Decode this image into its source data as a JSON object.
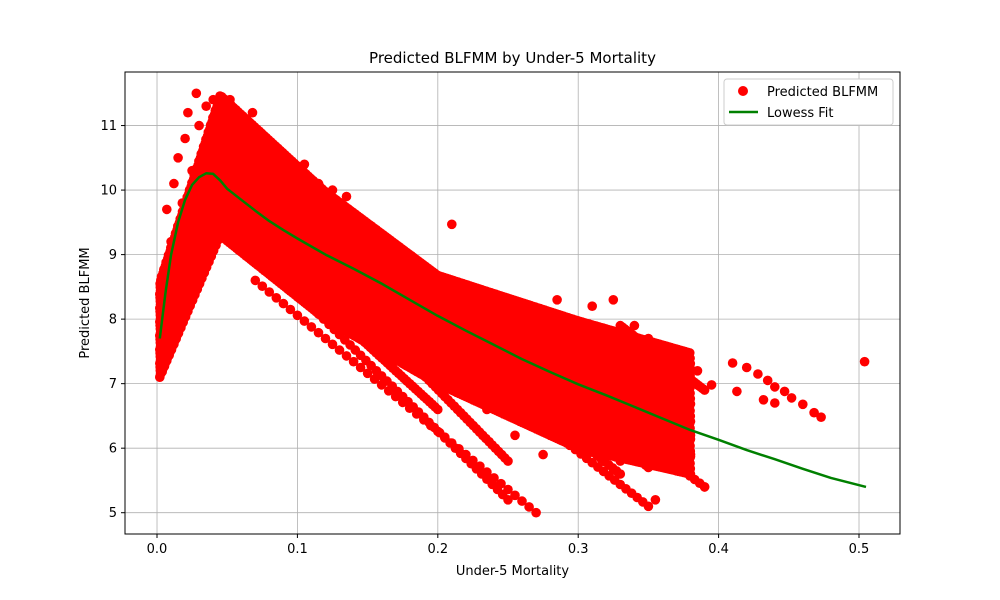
{
  "chart_data": {
    "type": "scatter",
    "title": "Predicted BLFMM by Under-5 Mortality",
    "xlabel": "Under-5 Mortality",
    "ylabel": "Predicted BLFMM",
    "xlim": [
      -0.0228,
      0.5292
    ],
    "ylim": [
      4.67,
      11.83
    ],
    "xticks": [
      0.0,
      0.1,
      0.2,
      0.3,
      0.4,
      0.5
    ],
    "xtick_labels": [
      "0.0",
      "0.1",
      "0.2",
      "0.3",
      "0.4",
      "0.5"
    ],
    "yticks": [
      5,
      6,
      7,
      8,
      9,
      10,
      11
    ],
    "ytick_labels": [
      "5",
      "6",
      "7",
      "8",
      "9",
      "10",
      "11"
    ],
    "grid": true,
    "legend_position": "top-right",
    "series": [
      {
        "name": "Predicted BLFMM",
        "kind": "scatter",
        "color": "#ff0000",
        "points": [
          [
            0.003,
            7.2
          ],
          [
            0.004,
            7.6
          ],
          [
            0.003,
            8.1
          ],
          [
            0.005,
            8.5
          ],
          [
            0.006,
            7.9
          ],
          [
            0.008,
            8.8
          ],
          [
            0.007,
            9.7
          ],
          [
            0.01,
            9.2
          ],
          [
            0.012,
            10.1
          ],
          [
            0.015,
            10.5
          ],
          [
            0.018,
            9.8
          ],
          [
            0.02,
            10.8
          ],
          [
            0.022,
            11.2
          ],
          [
            0.025,
            10.3
          ],
          [
            0.028,
            11.5
          ],
          [
            0.03,
            11.0
          ],
          [
            0.033,
            10.6
          ],
          [
            0.035,
            11.3
          ],
          [
            0.038,
            9.6
          ],
          [
            0.04,
            11.4
          ],
          [
            0.042,
            10.9
          ],
          [
            0.045,
            11.3
          ],
          [
            0.047,
            10.2
          ],
          [
            0.05,
            10.9
          ],
          [
            0.052,
            11.4
          ],
          [
            0.055,
            9.9
          ],
          [
            0.058,
            11.1
          ],
          [
            0.06,
            10.7
          ],
          [
            0.062,
            9.6
          ],
          [
            0.065,
            10.4
          ],
          [
            0.068,
            11.2
          ],
          [
            0.07,
            9.4
          ],
          [
            0.072,
            10.9
          ],
          [
            0.075,
            8.8
          ],
          [
            0.078,
            10.0
          ],
          [
            0.08,
            10.6
          ],
          [
            0.085,
            9.7
          ],
          [
            0.088,
            10.5
          ],
          [
            0.09,
            8.9
          ],
          [
            0.095,
            10.3
          ],
          [
            0.1,
            9.6
          ],
          [
            0.105,
            10.4
          ],
          [
            0.11,
            8.8
          ],
          [
            0.115,
            10.1
          ],
          [
            0.12,
            9.2
          ],
          [
            0.125,
            10.0
          ],
          [
            0.13,
            8.6
          ],
          [
            0.135,
            9.9
          ],
          [
            0.14,
            8.4
          ],
          [
            0.145,
            9.5
          ],
          [
            0.15,
            8.8
          ],
          [
            0.155,
            9.2
          ],
          [
            0.16,
            7.9
          ],
          [
            0.165,
            9.0
          ],
          [
            0.17,
            8.4
          ],
          [
            0.175,
            8.9
          ],
          [
            0.18,
            7.4
          ],
          [
            0.185,
            8.8
          ],
          [
            0.19,
            7.9
          ],
          [
            0.195,
            8.5
          ],
          [
            0.2,
            7.6
          ],
          [
            0.205,
            8.6
          ],
          [
            0.21,
            9.47
          ],
          [
            0.215,
            7.2
          ],
          [
            0.22,
            8.4
          ],
          [
            0.225,
            7.8
          ],
          [
            0.23,
            8.3
          ],
          [
            0.235,
            6.6
          ],
          [
            0.24,
            8.0
          ],
          [
            0.245,
            7.4
          ],
          [
            0.25,
            8.1
          ],
          [
            0.255,
            6.2
          ],
          [
            0.26,
            7.8
          ],
          [
            0.265,
            7.1
          ],
          [
            0.27,
            8.0
          ],
          [
            0.275,
            5.9
          ],
          [
            0.28,
            7.6
          ],
          [
            0.285,
            8.3
          ],
          [
            0.29,
            6.9
          ],
          [
            0.295,
            7.9
          ],
          [
            0.3,
            6.1
          ],
          [
            0.305,
            7.4
          ],
          [
            0.31,
            8.2
          ],
          [
            0.315,
            6.4
          ],
          [
            0.32,
            7.8
          ],
          [
            0.325,
            8.3
          ],
          [
            0.33,
            5.8
          ],
          [
            0.335,
            7.2
          ],
          [
            0.34,
            7.9
          ],
          [
            0.345,
            6.3
          ],
          [
            0.35,
            7.7
          ],
          [
            0.355,
            5.2
          ],
          [
            0.36,
            7.0
          ],
          [
            0.365,
            7.5
          ],
          [
            0.37,
            6.6
          ],
          [
            0.375,
            7.4
          ],
          [
            0.38,
            5.9
          ],
          [
            0.385,
            7.2
          ],
          [
            0.39,
            5.4
          ],
          [
            0.395,
            6.98
          ],
          [
            0.41,
            7.32
          ],
          [
            0.413,
            6.88
          ],
          [
            0.42,
            7.25
          ],
          [
            0.428,
            7.15
          ],
          [
            0.432,
            6.75
          ],
          [
            0.435,
            7.05
          ],
          [
            0.44,
            6.7
          ],
          [
            0.44,
            6.95
          ],
          [
            0.447,
            6.88
          ],
          [
            0.452,
            6.78
          ],
          [
            0.46,
            6.68
          ],
          [
            0.468,
            6.55
          ],
          [
            0.473,
            6.48
          ],
          [
            0.504,
            7.34
          ]
        ],
        "bands": [
          {
            "x0": 0.002,
            "x1": 0.045,
            "y_low_start": 7.1,
            "y_low_end": 9.3,
            "y_high_start": 8.6,
            "y_high_end": 11.5
          },
          {
            "x0": 0.045,
            "x1": 0.12,
            "y_low_start": 9.3,
            "y_low_end": 8.0,
            "y_high_start": 11.5,
            "y_high_end": 10.0
          },
          {
            "x0": 0.12,
            "x1": 0.2,
            "y_low_start": 8.0,
            "y_low_end": 7.0,
            "y_high_start": 10.0,
            "y_high_end": 8.7
          },
          {
            "x0": 0.2,
            "x1": 0.3,
            "y_low_start": 7.0,
            "y_low_end": 6.0,
            "y_high_start": 8.7,
            "y_high_end": 8.0
          },
          {
            "x0": 0.3,
            "x1": 0.38,
            "y_low_start": 6.0,
            "y_low_end": 5.6,
            "y_high_start": 8.0,
            "y_high_end": 7.5
          }
        ],
        "streaks": [
          {
            "x0": 0.07,
            "y0": 8.6,
            "x1": 0.27,
            "y1": 5.0
          },
          {
            "x0": 0.1,
            "y0": 8.4,
            "x1": 0.25,
            "y1": 5.2
          },
          {
            "x0": 0.12,
            "y0": 8.2,
            "x1": 0.2,
            "y1": 6.6
          },
          {
            "x0": 0.16,
            "y0": 7.8,
            "x1": 0.25,
            "y1": 5.8
          },
          {
            "x0": 0.19,
            "y0": 7.8,
            "x1": 0.35,
            "y1": 5.1
          },
          {
            "x0": 0.22,
            "y0": 7.5,
            "x1": 0.33,
            "y1": 5.6
          },
          {
            "x0": 0.25,
            "y0": 7.7,
            "x1": 0.39,
            "y1": 5.4
          },
          {
            "x0": 0.27,
            "y0": 7.2,
            "x1": 0.35,
            "y1": 5.7
          },
          {
            "x0": 0.3,
            "y0": 7.4,
            "x1": 0.38,
            "y1": 6.2
          },
          {
            "x0": 0.33,
            "y0": 7.9,
            "x1": 0.39,
            "y1": 6.9
          }
        ]
      },
      {
        "name": "Lowess Fit",
        "kind": "line",
        "color": "#008000",
        "points": [
          [
            0.002,
            7.7
          ],
          [
            0.006,
            8.4
          ],
          [
            0.01,
            9.0
          ],
          [
            0.015,
            9.5
          ],
          [
            0.02,
            9.85
          ],
          [
            0.025,
            10.08
          ],
          [
            0.03,
            10.2
          ],
          [
            0.035,
            10.26
          ],
          [
            0.04,
            10.25
          ],
          [
            0.045,
            10.15
          ],
          [
            0.05,
            10.02
          ],
          [
            0.06,
            9.85
          ],
          [
            0.07,
            9.68
          ],
          [
            0.08,
            9.52
          ],
          [
            0.09,
            9.38
          ],
          [
            0.1,
            9.25
          ],
          [
            0.12,
            9.0
          ],
          [
            0.14,
            8.78
          ],
          [
            0.16,
            8.55
          ],
          [
            0.18,
            8.3
          ],
          [
            0.2,
            8.05
          ],
          [
            0.22,
            7.82
          ],
          [
            0.24,
            7.6
          ],
          [
            0.26,
            7.38
          ],
          [
            0.28,
            7.18
          ],
          [
            0.3,
            6.99
          ],
          [
            0.32,
            6.82
          ],
          [
            0.34,
            6.64
          ],
          [
            0.36,
            6.46
          ],
          [
            0.38,
            6.28
          ],
          [
            0.4,
            6.13
          ],
          [
            0.42,
            5.97
          ],
          [
            0.44,
            5.83
          ],
          [
            0.46,
            5.68
          ],
          [
            0.48,
            5.54
          ],
          [
            0.505,
            5.4
          ]
        ]
      }
    ]
  }
}
